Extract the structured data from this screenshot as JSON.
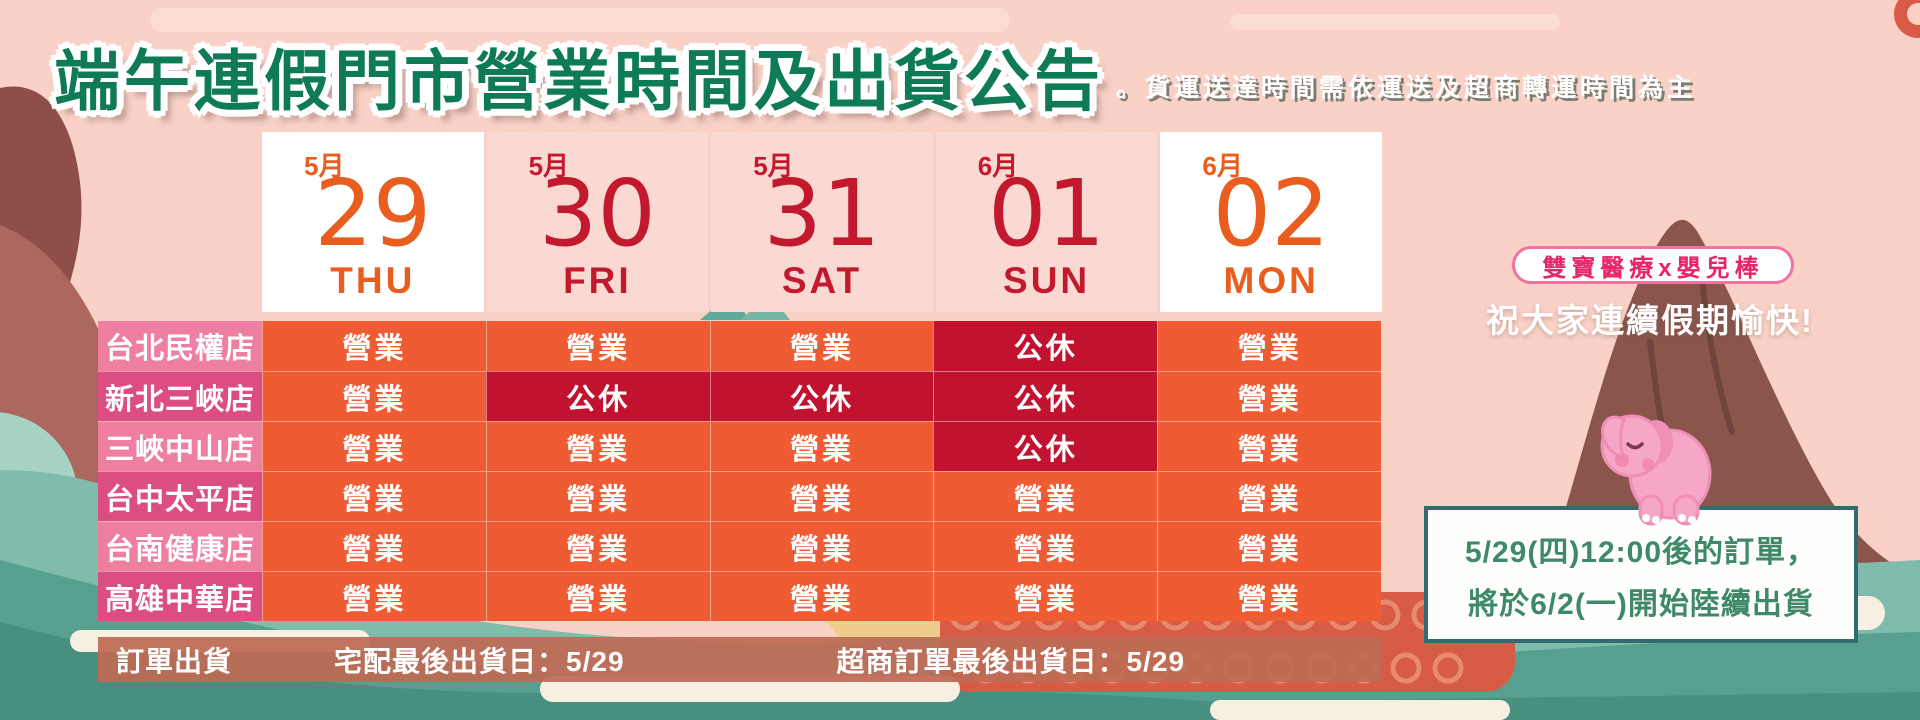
{
  "title": "端午連假門市營業時間及出貨公告",
  "subtitle": "。貨運送達時間需依運送及超商轉運時間為主",
  "calendar": {
    "columns": [
      {
        "month": "5月",
        "day": "29",
        "weekday": "THU",
        "accent": "orange",
        "highlight": true
      },
      {
        "month": "5月",
        "day": "30",
        "weekday": "FRI",
        "accent": "red",
        "highlight": false
      },
      {
        "month": "5月",
        "day": "31",
        "weekday": "SAT",
        "accent": "red",
        "highlight": false
      },
      {
        "month": "6月",
        "day": "01",
        "weekday": "SUN",
        "accent": "red",
        "highlight": false
      },
      {
        "month": "6月",
        "day": "02",
        "weekday": "MON",
        "accent": "orange",
        "highlight": true
      }
    ]
  },
  "status_labels": {
    "open": "營業",
    "closed": "公休"
  },
  "stores": [
    {
      "name": "台北民權店",
      "schedule": [
        "open",
        "open",
        "open",
        "closed",
        "open"
      ]
    },
    {
      "name": "新北三峽店",
      "schedule": [
        "open",
        "closed",
        "closed",
        "closed",
        "open"
      ]
    },
    {
      "name": "三峽中山店",
      "schedule": [
        "open",
        "open",
        "open",
        "closed",
        "open"
      ]
    },
    {
      "name": "台中太平店",
      "schedule": [
        "open",
        "open",
        "open",
        "open",
        "open"
      ]
    },
    {
      "name": "台南健康店",
      "schedule": [
        "open",
        "open",
        "open",
        "open",
        "open"
      ]
    },
    {
      "name": "高雄中華店",
      "schedule": [
        "open",
        "open",
        "open",
        "open",
        "open"
      ]
    }
  ],
  "footer": {
    "title": "訂單出貨",
    "home_delivery_label": "宅配最後出貨日：5/29",
    "cvs_label": "超商訂單最後出貨日：5/29"
  },
  "side": {
    "brand_badge": "雙寶醫療x嬰兒棒",
    "greeting": "祝大家連續假期愉快!",
    "shipping_notice": [
      "5/29(四)12:00後的訂單，",
      "將於6/2(一)開始陸續出貨"
    ]
  },
  "colors": {
    "title_green": "#0E7B54",
    "accent_orange": "#E95D1F",
    "accent_red": "#C2192E",
    "open_bg": "#EF5B33",
    "closed_bg": "#C1132F",
    "store_pink_light": "#EE7FA0",
    "store_pink_dark": "#DC4E81",
    "footer_bg": "#BF6C55",
    "badge_pink": "#E82565",
    "notice_green": "#3E8966",
    "notice_border": "#2F6B70"
  }
}
